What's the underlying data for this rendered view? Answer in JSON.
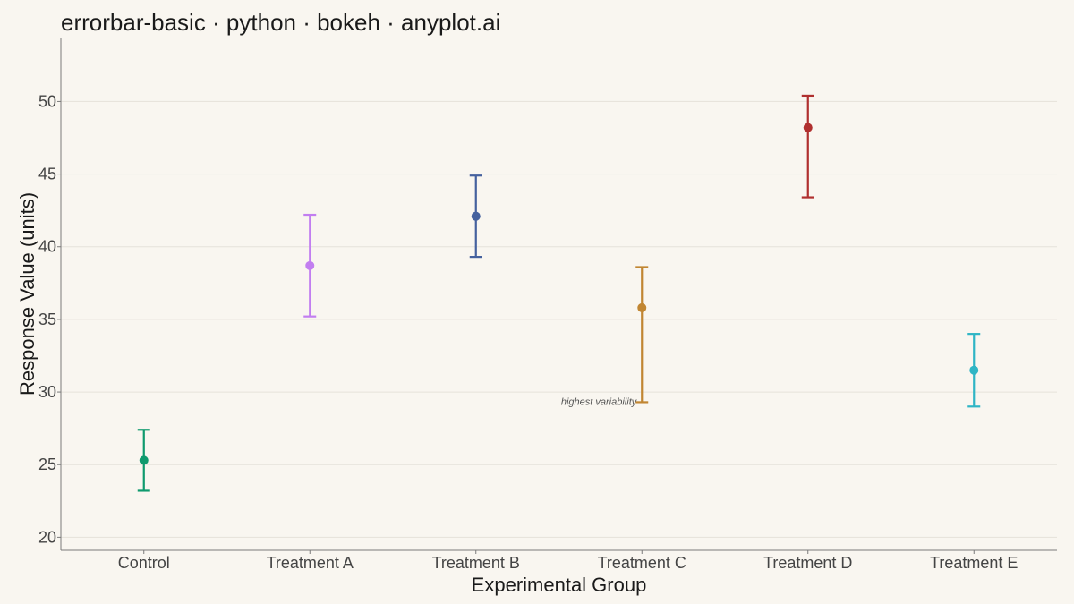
{
  "chart_data": {
    "type": "errorbar",
    "title": "errorbar-basic · python · bokeh · anyplot.ai",
    "xlabel": "Experimental Group",
    "ylabel": "Response Value (units)",
    "ylim": [
      19.1,
      54.4
    ],
    "yticks": [
      20,
      25,
      30,
      35,
      40,
      45,
      50
    ],
    "grid": true,
    "categories": [
      "Control",
      "Treatment A",
      "Treatment B",
      "Treatment C",
      "Treatment D",
      "Treatment E"
    ],
    "values": [
      25.3,
      38.7,
      42.1,
      35.8,
      48.2,
      31.5
    ],
    "lower": [
      23.2,
      35.2,
      39.3,
      29.3,
      43.4,
      29.0
    ],
    "upper": [
      27.4,
      42.2,
      44.9,
      38.6,
      50.4,
      34.0
    ],
    "colors": [
      "#0f9a6e",
      "#c27ef0",
      "#45619e",
      "#c18632",
      "#b0302f",
      "#2fb5c5"
    ],
    "annotation": {
      "text": "highest variability",
      "category": "Treatment C",
      "y": 29.3
    }
  }
}
